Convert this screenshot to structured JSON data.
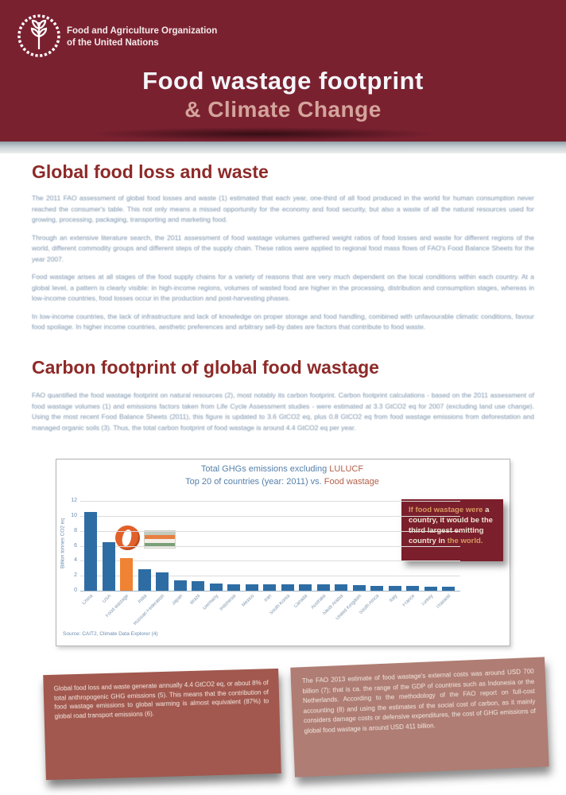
{
  "header": {
    "org_line1": "Food and Agriculture Organization",
    "org_line2": "of the United Nations",
    "title_line1": "Food wastage footprint",
    "title_line2": "& Climate Change",
    "header_bg": "#7a2130"
  },
  "section1": {
    "heading": "Global food loss and waste",
    "paragraphs": [
      "The 2011 FAO assessment of global food losses and waste (1) estimated that each year, one-third of all food produced in the world for human consumption never reached the consumer's table. This not only means a missed opportunity for the economy and food security, but also a waste of all the natural resources used for growing, processing, packaging, transporting and marketing food.",
      "Through an extensive literature search, the 2011 assessment of food wastage volumes gathered weight ratios of food losses and waste for different regions of the world, different commodity groups and different steps of the supply chain. These ratios were applied to regional food mass flows of FAO's Food Balance Sheets for the year 2007.",
      "Food wastage arises at all stages of the food supply chains for a variety of reasons that are very much dependent on the local conditions within each country. At a global level, a pattern is clearly visible: in high-income regions, volumes of wasted food are higher in the processing, distribution and consumption stages, whereas in low-income countries, food losses occur in the production and post-harvesting phases.",
      "In low-income countries, the lack of infrastructure and lack of knowledge on proper storage and food handling, combined with unfavourable climatic conditions, favour food spoilage. In higher income countries, aesthetic preferences and arbitrary sell-by dates are factors that contribute to food waste."
    ]
  },
  "section2": {
    "heading": "Carbon footprint of global food wastage",
    "paragraphs": [
      "FAO quantified the food wastage footprint on natural resources (2), most notably its carbon footprint. Carbon footprint calculations - based on the 2011 assessment of food wastage volumes (1) and emissions factors taken from Life Cycle Assessment studies - were estimated at 3.3 GtCO2 eq for 2007 (excluding land use change). Using the most recent Food Balance Sheets (2011), this figure is updated to 3.6 GtCO2 eq, plus 0.8 GtCO2 eq from food wastage emissions from deforestation and managed organic soils (3). Thus, the total carbon footprint of food wastage is around 4.4 GtCO2 eq per year."
    ]
  },
  "chart_data": {
    "type": "bar",
    "title1_main": "Total GHGs emissions excluding ",
    "title1_accent": "LULUCF",
    "title2_main": "Top 20 of countries (year: 2011) vs. ",
    "title2_accent": "Food wastage",
    "ylabel": "Billion tonnes CO2 eq",
    "ylim": [
      0,
      12
    ],
    "ytick_step": 2,
    "grid": true,
    "legend_position": "none",
    "categories": [
      "China",
      "USA",
      "Food wastage",
      "India",
      "Russian Federation",
      "Japan",
      "Brazil",
      "Germany",
      "Indonesia",
      "Mexico",
      "Iran",
      "South Korea",
      "Canada",
      "Australia",
      "Saudi Arabia",
      "United Kingdom",
      "South Africa",
      "Italy",
      "France",
      "Turkey",
      "Thailand"
    ],
    "values": [
      10.5,
      6.5,
      4.4,
      2.9,
      2.4,
      1.4,
      1.3,
      0.95,
      0.9,
      0.9,
      0.85,
      0.85,
      0.85,
      0.8,
      0.8,
      0.75,
      0.65,
      0.6,
      0.6,
      0.55,
      0.5
    ],
    "highlight_index": 2,
    "bar_color": "#2e6da4",
    "highlight_color": "#f08233",
    "source": "Source: CAIT2, Climate Data Explorer (4)",
    "callout_parts": [
      {
        "text": "If food wastage were ",
        "color": "#d89a62"
      },
      {
        "text": "a country, it would be the third largest emitting country in ",
        "color": "#efe3d2"
      },
      {
        "text": "the world.",
        "color": "#d89a62"
      }
    ]
  },
  "notes": {
    "left": "Global food loss and waste generate annually 4.4 GtCO2 eq, or about 8% of total anthropogenic GHG emissions (5). This means that the contribution of food wastage emissions to global warming is almost equivalent (87%) to global road transport emissions (6).",
    "right": "The FAO 2013 estimate of food wastage's external costs was around USD 700 billion (7); that is ca. the range of the GDP of countries such as Indonesia or the Netherlands. According to the methodology of the FAO report on full-cost accounting (8) and using the estimates of the social cost of carbon, as it mainly considers damage costs or defensive expenditures, the cost of GHG emissions of global food wastage is around USD 411 billion."
  }
}
